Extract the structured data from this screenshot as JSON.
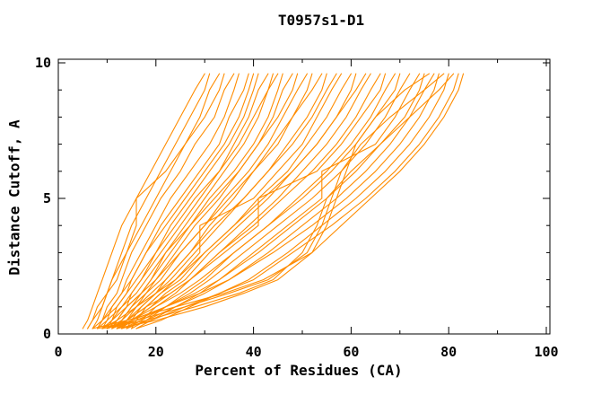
{
  "page": {
    "background": "#ffffff"
  },
  "chart_data": {
    "type": "line",
    "title": "T0957s1-D1",
    "xlabel": "Percent of Residues (CA)",
    "ylabel": "Distance Cutoff, A",
    "xlim": [
      0,
      100
    ],
    "ylim": [
      0,
      10
    ],
    "x_major_ticks": [
      0,
      20,
      40,
      60,
      80,
      100
    ],
    "x_minor_ticks": [
      10,
      30,
      50,
      70,
      90
    ],
    "y_major_ticks": [
      0,
      5,
      10
    ],
    "y_minor_ticks": [
      1,
      2,
      3,
      4,
      6,
      7,
      8,
      9
    ],
    "grid": false,
    "legend_position": "none",
    "line_color": "#FF8C00",
    "axis_color": "#000000",
    "cutoffs": [
      0.2,
      0.5,
      1,
      1.5,
      2,
      3,
      4,
      5,
      6,
      7,
      8,
      9,
      9.6
    ],
    "series_percent_of_residues": [
      [
        5,
        6,
        7,
        8,
        9,
        11,
        13,
        16,
        19,
        22,
        25,
        28,
        30
      ],
      [
        6,
        7,
        8,
        10,
        11,
        13,
        15,
        18,
        21,
        24,
        27,
        30,
        31
      ],
      [
        7,
        8,
        9,
        10,
        12,
        14,
        17,
        20,
        23,
        26,
        29,
        31,
        33
      ],
      [
        6,
        7,
        9,
        10,
        11,
        14,
        16,
        16,
        22,
        26,
        30,
        33,
        34
      ],
      [
        8,
        9,
        10,
        12,
        13,
        15,
        18,
        21,
        25,
        28,
        32,
        34,
        36
      ],
      [
        9,
        10,
        11,
        13,
        14,
        17,
        20,
        23,
        27,
        31,
        34,
        36,
        37
      ],
      [
        10,
        11,
        12,
        14,
        15,
        18,
        21,
        25,
        29,
        33,
        35,
        38,
        39
      ],
      [
        8,
        9,
        11,
        13,
        15,
        18,
        22,
        26,
        30,
        34,
        37,
        39,
        40
      ],
      [
        11,
        12,
        14,
        15,
        17,
        20,
        23,
        27,
        31,
        35,
        38,
        40,
        41
      ],
      [
        9,
        11,
        13,
        15,
        17,
        21,
        25,
        29,
        33,
        36,
        39,
        41,
        43
      ],
      [
        12,
        13,
        15,
        17,
        19,
        22,
        26,
        30,
        34,
        38,
        41,
        43,
        44
      ],
      [
        7,
        9,
        12,
        14,
        16,
        20,
        24,
        28,
        33,
        37,
        40,
        43,
        45
      ],
      [
        10,
        12,
        14,
        17,
        19,
        23,
        27,
        31,
        36,
        40,
        43,
        45,
        46
      ],
      [
        13,
        14,
        16,
        18,
        20,
        24,
        28,
        33,
        37,
        41,
        44,
        46,
        48
      ],
      [
        8,
        10,
        13,
        16,
        18,
        22,
        27,
        32,
        37,
        41,
        45,
        48,
        49
      ],
      [
        11,
        13,
        15,
        18,
        21,
        25,
        30,
        34,
        39,
        43,
        46,
        49,
        51
      ],
      [
        14,
        15,
        17,
        20,
        22,
        27,
        31,
        36,
        40,
        44,
        48,
        51,
        52
      ],
      [
        9,
        11,
        14,
        17,
        20,
        25,
        30,
        35,
        40,
        45,
        48,
        52,
        54
      ],
      [
        12,
        14,
        17,
        20,
        23,
        28,
        33,
        38,
        43,
        47,
        51,
        54,
        55
      ],
      [
        10,
        13,
        16,
        19,
        22,
        27,
        32,
        38,
        43,
        48,
        52,
        55,
        57
      ],
      [
        15,
        16,
        18,
        21,
        24,
        29,
        29,
        40,
        45,
        50,
        53,
        56,
        58
      ],
      [
        11,
        14,
        18,
        21,
        25,
        30,
        36,
        41,
        47,
        51,
        55,
        58,
        60
      ],
      [
        13,
        15,
        19,
        22,
        26,
        31,
        37,
        43,
        48,
        53,
        57,
        60,
        61
      ],
      [
        9,
        12,
        16,
        20,
        24,
        30,
        36,
        42,
        48,
        53,
        57,
        61,
        63
      ],
      [
        14,
        17,
        20,
        24,
        27,
        33,
        39,
        45,
        50,
        55,
        59,
        62,
        64
      ],
      [
        12,
        15,
        19,
        23,
        27,
        33,
        40,
        46,
        52,
        57,
        61,
        64,
        66
      ],
      [
        10,
        14,
        18,
        23,
        27,
        34,
        41,
        41,
        53,
        58,
        62,
        66,
        67
      ],
      [
        15,
        18,
        22,
        26,
        30,
        36,
        43,
        49,
        55,
        60,
        64,
        67,
        69
      ],
      [
        11,
        15,
        20,
        25,
        29,
        36,
        43,
        50,
        56,
        61,
        65,
        69,
        70
      ],
      [
        13,
        17,
        22,
        27,
        31,
        38,
        45,
        52,
        58,
        63,
        67,
        70,
        72
      ],
      [
        16,
        19,
        24,
        29,
        33,
        40,
        47,
        54,
        54,
        65,
        69,
        72,
        74
      ],
      [
        12,
        16,
        22,
        28,
        33,
        41,
        48,
        55,
        61,
        66,
        71,
        74,
        75
      ],
      [
        14,
        18,
        24,
        30,
        35,
        43,
        50,
        57,
        63,
        68,
        72,
        75,
        77
      ],
      [
        10,
        15,
        22,
        29,
        35,
        44,
        52,
        59,
        65,
        70,
        74,
        77,
        78
      ],
      [
        16,
        21,
        27,
        33,
        39,
        47,
        54,
        61,
        67,
        72,
        76,
        79,
        80
      ],
      [
        13,
        19,
        26,
        33,
        40,
        48,
        56,
        63,
        69,
        74,
        78,
        81,
        82
      ],
      [
        12,
        20,
        30,
        38,
        45,
        52,
        58,
        64,
        70,
        75,
        79,
        82,
        83
      ],
      [
        9,
        18,
        28,
        37,
        44,
        50,
        53,
        55,
        60,
        66,
        72,
        78,
        81
      ],
      [
        8,
        16,
        26,
        35,
        43,
        51,
        54,
        56,
        58,
        62,
        68,
        75,
        79
      ],
      [
        7,
        14,
        24,
        34,
        42,
        52,
        55,
        57,
        59,
        61,
        65,
        71,
        76
      ]
    ]
  }
}
